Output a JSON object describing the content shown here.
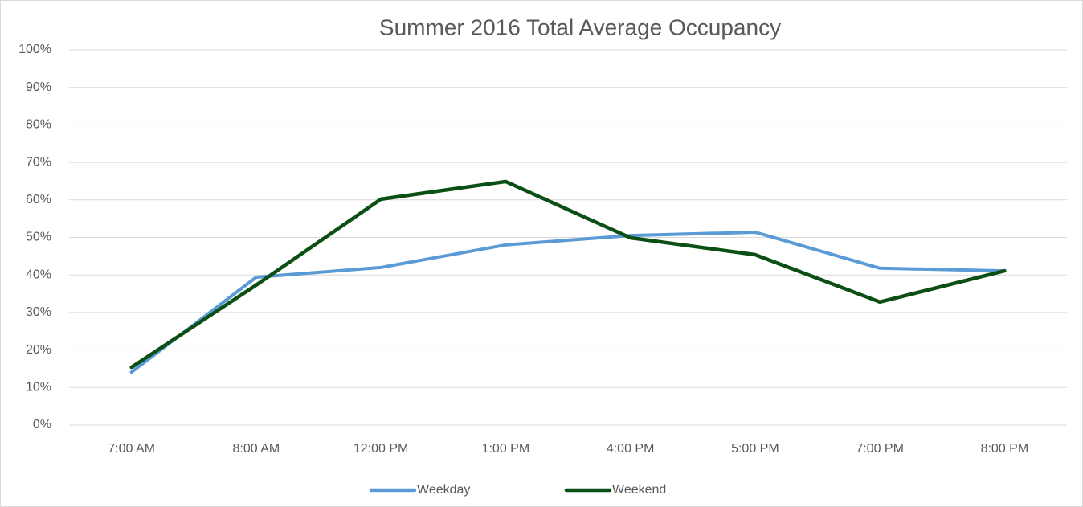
{
  "chart_data": {
    "type": "line",
    "title": "Summer 2016 Total Average Occupancy",
    "categories": [
      "7:00 AM",
      "8:00 AM",
      "12:00 PM",
      "1:00 PM",
      "4:00 PM",
      "5:00 PM",
      "7:00 PM",
      "8:00 PM"
    ],
    "series": [
      {
        "name": "Weekday",
        "color": "#5b9bd5",
        "values": [
          14.1,
          39.4,
          42,
          48,
          50.5,
          51.4,
          41.8,
          41.1
        ]
      },
      {
        "name": "Weekend",
        "color": "#0c4f14",
        "values": [
          15.4,
          37.3,
          60.2,
          64.9,
          49.9,
          45.4,
          32.8,
          41.1
        ]
      }
    ],
    "ylim": [
      0,
      100
    ],
    "yticks": [
      {
        "value": 0,
        "label": "0%"
      },
      {
        "value": 10,
        "label": "10%"
      },
      {
        "value": 20,
        "label": "20%"
      },
      {
        "value": 30,
        "label": "30%"
      },
      {
        "value": 40,
        "label": "40%"
      },
      {
        "value": 50,
        "label": "50%"
      },
      {
        "value": 60,
        "label": "60%"
      },
      {
        "value": 70,
        "label": "70%"
      },
      {
        "value": 80,
        "label": "80%"
      },
      {
        "value": 90,
        "label": "90%"
      },
      {
        "value": 100,
        "label": "100%"
      }
    ],
    "grid": true,
    "legend": "bottom"
  }
}
